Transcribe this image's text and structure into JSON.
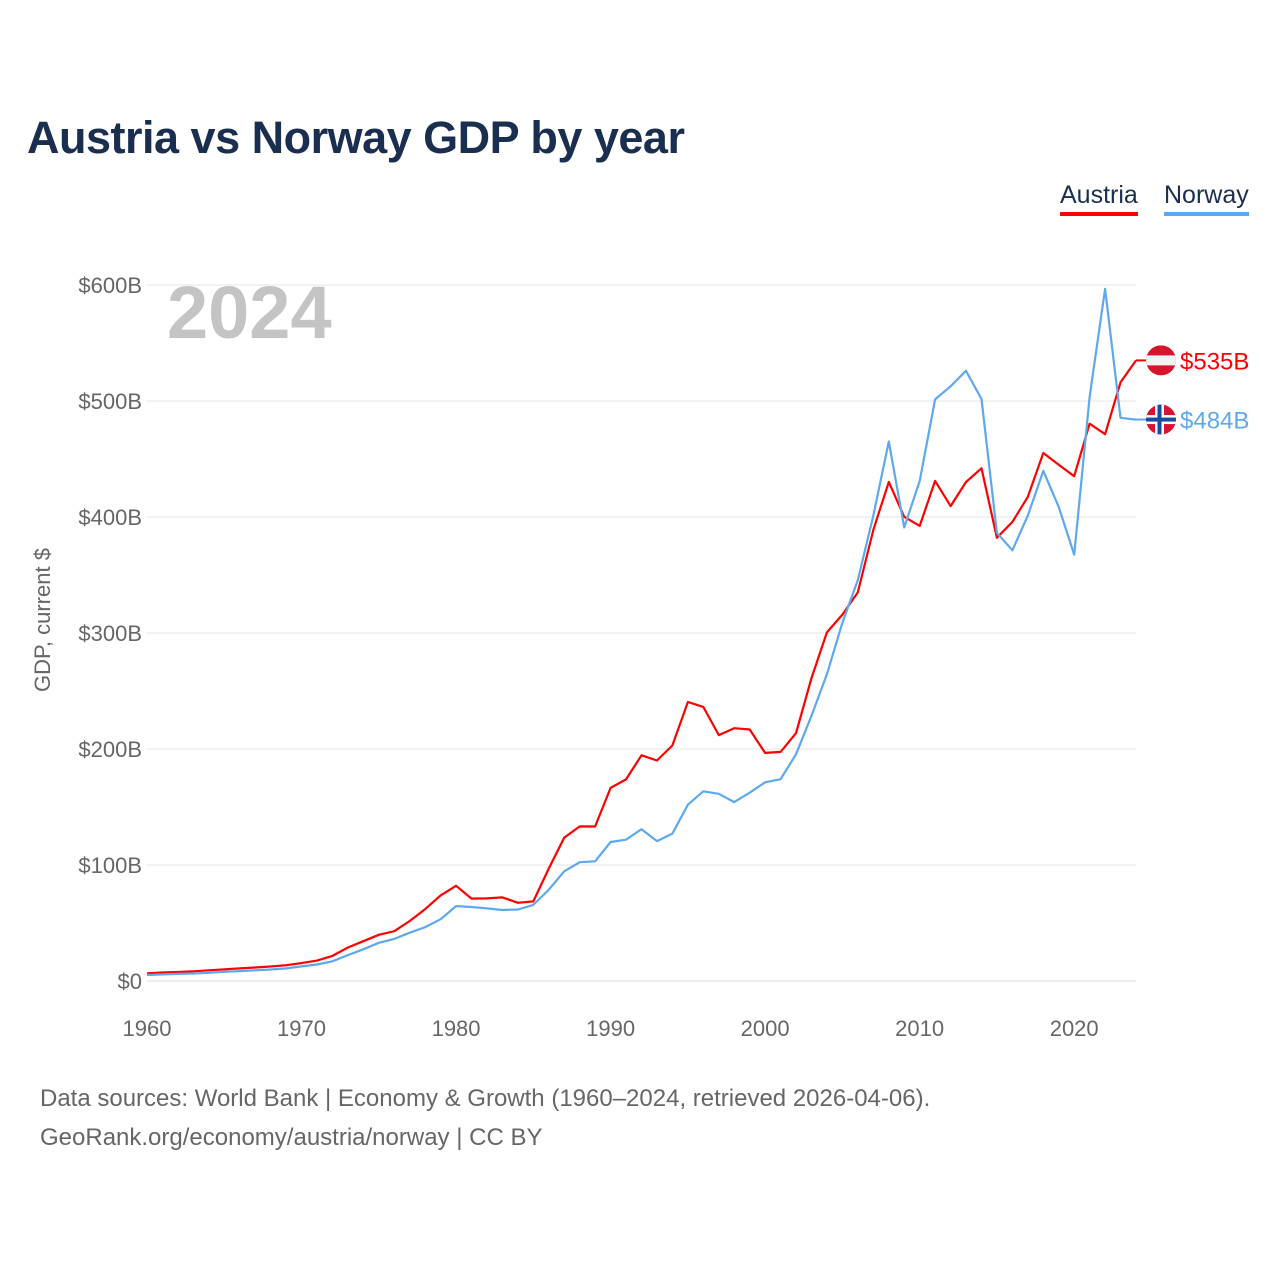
{
  "title": "Austria vs Norway GDP by year",
  "legend": [
    {
      "label": "Austria",
      "color": "#ff0000"
    },
    {
      "label": "Norway",
      "color": "#5ea8ee"
    }
  ],
  "year_watermark": "2024",
  "footer": {
    "line1": "Data sources: World Bank | Economy & Growth (1960–2024, retrieved 2026-04-06).",
    "line2": "GeoRank.org/economy/austria/norway | CC BY"
  },
  "chart_data": {
    "type": "line",
    "title": "Austria vs Norway GDP by year",
    "xlabel": "",
    "ylabel": "GDP, current $",
    "xlim": [
      1960,
      2024
    ],
    "ylim": [
      0,
      600
    ],
    "x_ticks": [
      1960,
      1970,
      1980,
      1990,
      2000,
      2010,
      2020
    ],
    "y_ticks": [
      0,
      100,
      200,
      300,
      400,
      500,
      600
    ],
    "y_tick_labels": [
      "$0",
      "$100B",
      "$200B",
      "$300B",
      "$400B",
      "$500B",
      "$600B"
    ],
    "grid": true,
    "legend_position": "top-right",
    "x_start": 1960,
    "series": [
      {
        "name": "Austria",
        "color": "#ff0000",
        "end_label": "$535B",
        "flag": "austria",
        "values": [
          6.6,
          7.3,
          7.8,
          8.4,
          9.2,
          10.0,
          10.9,
          11.6,
          12.5,
          13.6,
          15.4,
          17.6,
          21.6,
          28.9,
          34.3,
          39.8,
          42.9,
          51.7,
          62.0,
          73.8,
          82.1,
          71.0,
          71.2,
          72.1,
          67.4,
          68.6,
          97.0,
          123.5,
          133.3,
          133.2,
          166.5,
          173.8,
          194.6,
          190.1,
          203.1,
          240.5,
          236.3,
          212.0,
          217.9,
          216.8,
          196.6,
          197.5,
          213.6,
          261.1,
          300.5,
          315.9,
          335.0,
          388.7,
          430.3,
          400.2,
          392.3,
          431.1,
          409.4,
          430.2,
          442.0,
          382.1,
          395.8,
          417.3,
          455.2,
          445.0,
          435.2,
          480.4,
          471.4,
          516.0,
          535.0
        ]
      },
      {
        "name": "Norway",
        "color": "#5ea8ee",
        "end_label": "$484B",
        "flag": "norway",
        "values": [
          5.2,
          5.7,
          6.1,
          6.5,
          7.1,
          7.9,
          8.5,
          9.2,
          9.9,
          10.9,
          12.6,
          14.2,
          17.0,
          22.3,
          27.3,
          32.9,
          36.3,
          41.6,
          46.5,
          53.3,
          64.6,
          63.8,
          62.6,
          61.2,
          61.6,
          65.6,
          78.7,
          94.6,
          102.4,
          103.2,
          119.8,
          121.8,
          130.9,
          120.6,
          127.1,
          152.0,
          163.5,
          161.4,
          154.2,
          162.3,
          171.3,
          174.0,
          195.4,
          228.7,
          264.4,
          308.9,
          345.6,
          401.1,
          465.0,
          391.0,
          431.0,
          501.4,
          512.7,
          526.0,
          501.7,
          386.4,
          371.3,
          401.1,
          439.8,
          408.7,
          367.6,
          503.4,
          596.6,
          485.5,
          484.0
        ]
      }
    ]
  }
}
